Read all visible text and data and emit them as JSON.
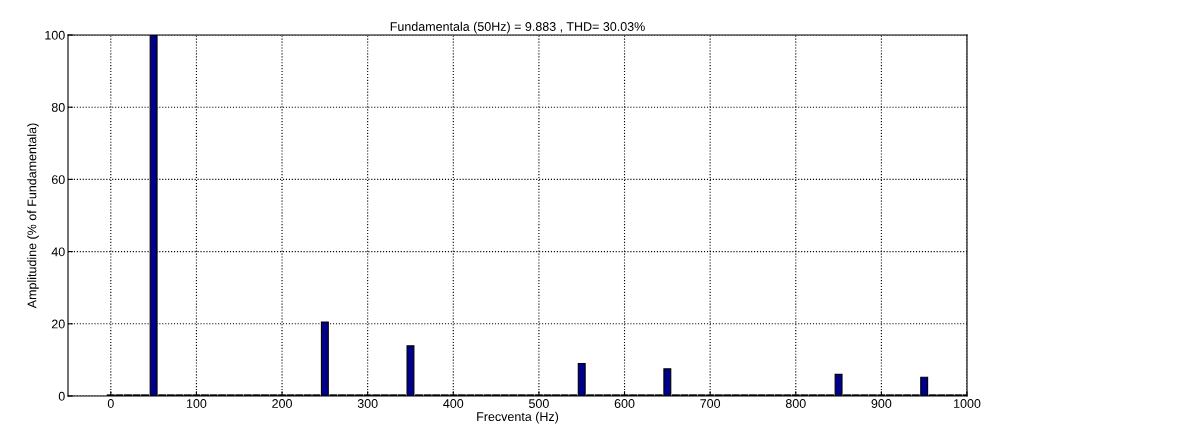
{
  "chart_data": {
    "type": "bar",
    "title": "Fundamentala (50Hz) = 9.883 , THD= 30.03%",
    "xlabel": "Frecventa (Hz)",
    "ylabel": "Amplitudine (% of Fundamentala)",
    "x": [
      0,
      10,
      20,
      30,
      40,
      50,
      60,
      70,
      80,
      90,
      100,
      110,
      120,
      130,
      140,
      150,
      160,
      170,
      180,
      190,
      200,
      210,
      220,
      230,
      240,
      250,
      260,
      270,
      280,
      290,
      300,
      310,
      320,
      330,
      340,
      350,
      360,
      370,
      380,
      390,
      400,
      410,
      420,
      430,
      440,
      450,
      460,
      470,
      480,
      490,
      500,
      510,
      520,
      530,
      540,
      550,
      560,
      570,
      580,
      590,
      600,
      610,
      620,
      630,
      640,
      650,
      660,
      670,
      680,
      690,
      700,
      710,
      720,
      730,
      740,
      750,
      760,
      770,
      780,
      790,
      800,
      810,
      820,
      830,
      840,
      850,
      860,
      870,
      880,
      890,
      900,
      910,
      920,
      930,
      940,
      950,
      960,
      970,
      980,
      990,
      1000
    ],
    "values": [
      0.3,
      0.3,
      0.3,
      0.3,
      0.3,
      100,
      0.3,
      0.3,
      0.3,
      0.3,
      0.3,
      0.3,
      0.3,
      0.3,
      0.3,
      0.3,
      0.3,
      0.3,
      0.3,
      0.3,
      0.3,
      0.3,
      0.3,
      0.3,
      0.3,
      20.5,
      0.3,
      0.3,
      0.3,
      0.3,
      0.3,
      0.3,
      0.3,
      0.3,
      0.3,
      13.9,
      0.3,
      0.3,
      0.3,
      0.3,
      0.3,
      0.3,
      0.3,
      0.3,
      0.3,
      0.3,
      0.3,
      0.3,
      0.3,
      0.3,
      0.3,
      0.3,
      0.3,
      0.3,
      0.3,
      9.0,
      0.3,
      0.3,
      0.3,
      0.3,
      0.3,
      0.3,
      0.3,
      0.3,
      0.3,
      7.5,
      0.3,
      0.3,
      0.3,
      0.3,
      0.3,
      0.3,
      0.3,
      0.3,
      0.3,
      0.3,
      0.3,
      0.3,
      0.3,
      0.3,
      0.3,
      0.3,
      0.3,
      0.3,
      0.3,
      6.0,
      0.3,
      0.3,
      0.3,
      0.3,
      0.3,
      0.3,
      0.3,
      0.3,
      0.3,
      5.2,
      0.3,
      0.3,
      0.3,
      0.3,
      0.3
    ],
    "color": "#00008b",
    "xlim": [
      -50,
      1000
    ],
    "xticks": [
      0,
      100,
      200,
      300,
      400,
      500,
      600,
      700,
      800,
      900,
      1000
    ],
    "ylim": [
      0,
      100
    ],
    "yticks": [
      0,
      20,
      40,
      60,
      80,
      100
    ],
    "grid": true
  }
}
